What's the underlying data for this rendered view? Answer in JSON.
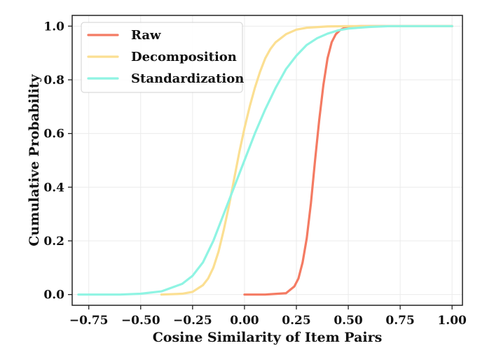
{
  "chart_data": {
    "type": "line",
    "title": "",
    "xlabel": "Cosine Similarity of Item Pairs",
    "ylabel": "Cumulative Probability",
    "xlim": [
      -0.83,
      1.05
    ],
    "ylim": [
      -0.04,
      1.04
    ],
    "xticks": [
      -0.75,
      -0.5,
      -0.25,
      0.0,
      0.25,
      0.5,
      0.75,
      1.0
    ],
    "xtick_labels": [
      "−0.75",
      "−0.50",
      "−0.25",
      "0.00",
      "0.25",
      "0.50",
      "0.75",
      "1.00"
    ],
    "yticks": [
      0.0,
      0.2,
      0.4,
      0.6,
      0.8,
      1.0
    ],
    "ytick_labels": [
      "0.0",
      "0.2",
      "0.4",
      "0.6",
      "0.8",
      "1.0"
    ],
    "grid": true,
    "legend": "upper-left",
    "series": [
      {
        "name": "Raw",
        "color": "#F47B63",
        "x": [
          0.0,
          0.1,
          0.2,
          0.24,
          0.26,
          0.28,
          0.3,
          0.32,
          0.34,
          0.36,
          0.38,
          0.4,
          0.42,
          0.44,
          0.46,
          0.48,
          0.5,
          0.53,
          0.56,
          0.6,
          0.7,
          0.8,
          1.0
        ],
        "y": [
          0.0,
          0.0,
          0.005,
          0.03,
          0.06,
          0.12,
          0.21,
          0.34,
          0.5,
          0.65,
          0.78,
          0.88,
          0.94,
          0.97,
          0.985,
          0.993,
          0.997,
          0.999,
          1.0,
          1.0,
          1.0,
          1.0,
          1.0
        ]
      },
      {
        "name": "Decomposition",
        "color": "#FBDF92",
        "x": [
          -0.4,
          -0.3,
          -0.25,
          -0.2,
          -0.175,
          -0.15,
          -0.125,
          -0.1,
          -0.075,
          -0.05,
          -0.025,
          0.0,
          0.025,
          0.05,
          0.075,
          0.1,
          0.125,
          0.15,
          0.2,
          0.25,
          0.3,
          0.4,
          0.5,
          1.0
        ],
        "y": [
          0.0,
          0.003,
          0.01,
          0.035,
          0.06,
          0.1,
          0.16,
          0.24,
          0.33,
          0.43,
          0.53,
          0.62,
          0.7,
          0.77,
          0.83,
          0.88,
          0.915,
          0.94,
          0.97,
          0.987,
          0.994,
          0.999,
          1.0,
          1.0
        ]
      },
      {
        "name": "Standardization",
        "color": "#8FF4E3",
        "x": [
          -0.8,
          -0.6,
          -0.5,
          -0.4,
          -0.3,
          -0.25,
          -0.2,
          -0.15,
          -0.1,
          -0.05,
          0.0,
          0.05,
          0.1,
          0.15,
          0.2,
          0.25,
          0.3,
          0.35,
          0.4,
          0.45,
          0.5,
          0.6,
          0.7,
          1.0
        ],
        "y": [
          0.0,
          0.0,
          0.003,
          0.012,
          0.04,
          0.07,
          0.12,
          0.2,
          0.3,
          0.4,
          0.5,
          0.6,
          0.69,
          0.77,
          0.84,
          0.89,
          0.93,
          0.955,
          0.972,
          0.984,
          0.991,
          0.997,
          1.0,
          1.0
        ]
      }
    ]
  }
}
